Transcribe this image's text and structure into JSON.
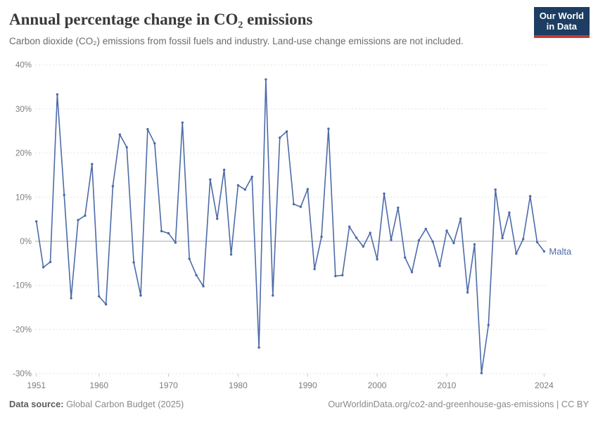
{
  "header": {
    "title": "Annual percentage change in CO₂ emissions",
    "subtitle": "Carbon dioxide (CO₂) emissions from fossil fuels and industry. Land-use change emissions are not included.",
    "logo": {
      "line1": "Our World",
      "line2": "in Data"
    }
  },
  "chart_data": {
    "type": "line",
    "title": "Annual percentage change in CO₂ emissions",
    "xlabel": "",
    "ylabel": "",
    "unit": "%",
    "ytick_suffix": "%",
    "xlim": [
      1951,
      2024
    ],
    "ylim": [
      -30,
      40
    ],
    "xticks": [
      1951,
      1960,
      1970,
      1980,
      1990,
      2000,
      2010,
      2024
    ],
    "yticks": [
      40,
      30,
      20,
      10,
      0,
      -10,
      -20,
      -30
    ],
    "grid": "horizontal-dashed",
    "zero_line": true,
    "legend_position": "end-of-line",
    "series": [
      {
        "name": "Malta",
        "x": [
          1951,
          1952,
          1953,
          1954,
          1955,
          1956,
          1957,
          1958,
          1959,
          1960,
          1961,
          1962,
          1963,
          1964,
          1965,
          1966,
          1967,
          1968,
          1969,
          1970,
          1971,
          1972,
          1973,
          1974,
          1975,
          1976,
          1977,
          1978,
          1979,
          1980,
          1981,
          1982,
          1983,
          1984,
          1985,
          1986,
          1987,
          1988,
          1989,
          1990,
          1991,
          1992,
          1993,
          1994,
          1995,
          1996,
          1997,
          1998,
          1999,
          2000,
          2001,
          2002,
          2003,
          2004,
          2005,
          2006,
          2007,
          2008,
          2009,
          2010,
          2011,
          2012,
          2013,
          2014,
          2015,
          2016,
          2017,
          2018,
          2019,
          2020,
          2021,
          2022,
          2023,
          2024
        ],
        "values": [
          4.5,
          -5.9,
          -4.7,
          33.3,
          10.5,
          -12.9,
          4.8,
          5.8,
          17.5,
          -12.5,
          -14.3,
          12.5,
          24.2,
          21.3,
          -4.8,
          -12.3,
          25.4,
          22.2,
          2.3,
          1.8,
          -0.3,
          26.9,
          -4.0,
          -7.7,
          -10.2,
          14.0,
          5.1,
          16.2,
          -3.0,
          12.7,
          11.7,
          14.6,
          -24.1,
          36.7,
          -12.3,
          23.5,
          24.9,
          8.4,
          7.8,
          11.8,
          -6.3,
          1.0,
          25.5,
          -7.9,
          -7.7,
          3.3,
          0.8,
          -1.2,
          1.9,
          -4.1,
          10.8,
          0.3,
          7.6,
          -3.7,
          -7.0,
          0.2,
          2.8,
          -0.1,
          -5.6,
          2.4,
          -0.4,
          5.1,
          -11.6,
          -0.7,
          -29.9,
          -19.0,
          11.7,
          0.7,
          6.5,
          -2.8,
          0.5,
          10.2,
          -0.2,
          -2.3
        ]
      }
    ]
  },
  "colors": {
    "line": "#4d6ba8",
    "gridline": "#e2e2e2",
    "zero_line": "#a6a6a6",
    "axis_text": "#7d7d7d",
    "tick_mark": "#c9c9c9",
    "title_text": "#3a3a3a",
    "logo_bg": "#1d3d63",
    "logo_accent": "#c43b33"
  },
  "footer": {
    "source_label": "Data source:",
    "source_value": " Global Carbon Budget (2025)",
    "right": "OurWorldinData.org/co2-and-greenhouse-gas-emissions | CC BY"
  }
}
